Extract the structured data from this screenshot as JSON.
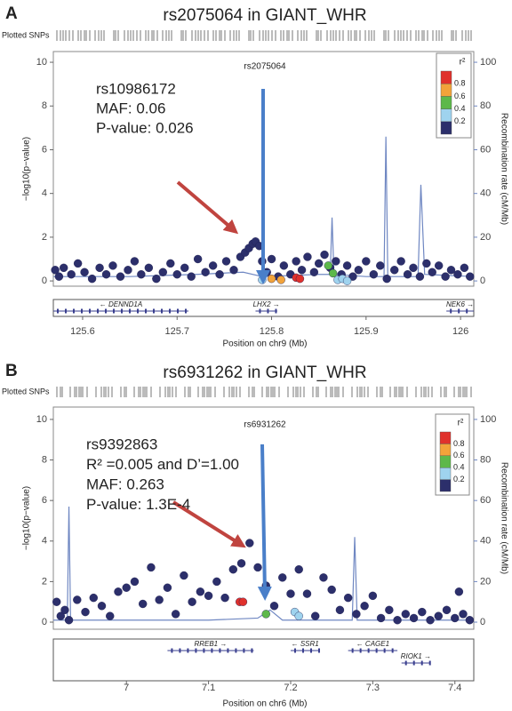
{
  "chart_data": [
    {
      "type": "scatter",
      "panel": "A",
      "title": "rs2075064 in GIANT_WHR",
      "snp_track_label": "Plotted SNPs",
      "index_snp": "rs2075064",
      "annotation": [
        "rs10986172",
        "MAF: 0.06",
        "P-value: 0.026"
      ],
      "x_label": "Position on chr9 (Mb)",
      "y_label": "−log10(p−value)",
      "y2_label": "Recombination rate (cM/Mb)",
      "xlim": [
        125.569,
        126.014
      ],
      "xticks": [
        125.6,
        125.7,
        125.8,
        125.9,
        126
      ],
      "ylim": [
        -0.24,
        10.49
      ],
      "yticks": [
        0,
        2,
        4,
        6,
        8,
        10
      ],
      "y2lim": [
        -2.4,
        104.9
      ],
      "y2ticks": [
        0,
        20,
        40,
        60,
        80,
        100
      ],
      "legend": {
        "title": "r²",
        "colors": [
          "#2c2f6b",
          "#9fd3ee",
          "#5db84a",
          "#f2a33a",
          "#e0312c"
        ],
        "ticks": [
          0.2,
          0.4,
          0.6,
          0.8
        ]
      },
      "series": [
        {
          "color": "#2c2f6b",
          "x": [
            125.571,
            125.575,
            125.58,
            125.588,
            125.595,
            125.602,
            125.61,
            125.618,
            125.625,
            125.632,
            125.64,
            125.648,
            125.655,
            125.662,
            125.67,
            125.678,
            125.685,
            125.693,
            125.7,
            125.708,
            125.715,
            125.722,
            125.73,
            125.738,
            125.745,
            125.752,
            125.76,
            125.767,
            125.772,
            125.776,
            125.78,
            125.783,
            125.787,
            125.79,
            125.795,
            125.8,
            125.807,
            125.813,
            125.82,
            125.826,
            125.832,
            125.838,
            125.845,
            125.85,
            125.856,
            125.862,
            125.868,
            125.874,
            125.88,
            125.886,
            125.892,
            125.9,
            125.908,
            125.915,
            125.922,
            125.93,
            125.937,
            125.944,
            125.95,
            125.957,
            125.964,
            125.97,
            125.977,
            125.984,
            125.99,
            125.997,
            126.004,
            126.01
          ],
          "values": [
            0.5,
            0.2,
            0.6,
            0.3,
            0.8,
            0.4,
            0.1,
            0.6,
            0.3,
            0.7,
            0.2,
            0.5,
            0.9,
            0.3,
            0.6,
            0.1,
            0.4,
            0.8,
            0.3,
            0.6,
            0.2,
            1.0,
            0.4,
            0.7,
            0.3,
            0.9,
            0.5,
            1.1,
            1.3,
            1.5,
            1.7,
            1.8,
            1.6,
            0.9,
            0.4,
            1.0,
            0.2,
            0.7,
            0.3,
            0.9,
            0.5,
            1.1,
            0.4,
            0.8,
            1.2,
            0.6,
            0.9,
            0.3,
            0.7,
            0.2,
            0.5,
            0.9,
            0.3,
            0.7,
            0.1,
            0.5,
            0.9,
            0.3,
            0.6,
            0.2,
            0.8,
            0.4,
            0.7,
            0.2,
            0.5,
            0.3,
            0.6,
            0.2
          ]
        },
        {
          "color": "#9fd3ee",
          "x": [
            125.79,
            125.87,
            125.875,
            125.88
          ],
          "values": [
            0.05,
            0.05,
            0.1,
            0.0
          ]
        },
        {
          "color": "#5db84a",
          "x": [
            125.86,
            125.865
          ],
          "values": [
            0.7,
            0.35
          ]
        },
        {
          "color": "#f2a33a",
          "x": [
            125.8,
            125.81
          ],
          "values": [
            0.1,
            0.05
          ]
        },
        {
          "color": "#e0312c",
          "x": [
            125.826,
            125.83
          ],
          "values": [
            0.15,
            0.1
          ]
        }
      ],
      "recombination": {
        "color": "#6f87c2",
        "x": [
          125.569,
          125.65,
          125.72,
          125.77,
          125.79,
          125.85,
          125.862,
          125.864,
          125.866,
          125.9,
          125.919,
          125.921,
          125.923,
          125.955,
          125.958,
          125.962,
          126.014
        ],
        "values": [
          2,
          2,
          3,
          4,
          2,
          3,
          3,
          29,
          3,
          2,
          2,
          66,
          2,
          2,
          44,
          3,
          2
        ]
      },
      "genes": [
        {
          "name": "DENND1A",
          "start": 125.569,
          "end": 125.712,
          "strand": "-",
          "row": 0
        },
        {
          "name": "LHX2",
          "start": 125.783,
          "end": 125.806,
          "strand": "+",
          "row": 0
        },
        {
          "name": "NEK6",
          "start": 125.985,
          "end": 126.014,
          "strand": "+",
          "row": 0
        }
      ]
    },
    {
      "type": "scatter",
      "panel": "B",
      "title": "rs6931262 in GIANT_WHR",
      "snp_track_label": "Plotted SNPs",
      "index_snp": "rs6931262",
      "annotation": [
        "rs9392863",
        "R² =0.005 and D’=1.00",
        "MAF: 0.263",
        "P-value: 1.3E-4"
      ],
      "x_label": "Position on chr6 (Mb)",
      "y_label": "−log10(p−value)",
      "y2_label": "Recombination rate (cM/Mb)",
      "xlim": [
        6.911,
        7.423
      ],
      "xticks": [
        7,
        7.1,
        7.2,
        7.3,
        7.4
      ],
      "ylim": [
        -0.35,
        10.61
      ],
      "yticks": [
        0,
        2,
        4,
        6,
        8,
        10
      ],
      "y2lim": [
        -3.5,
        106.1
      ],
      "y2ticks": [
        0,
        20,
        40,
        60,
        80,
        100
      ],
      "legend": {
        "title": "r²",
        "colors": [
          "#2c2f6b",
          "#9fd3ee",
          "#5db84a",
          "#f2a33a",
          "#e0312c"
        ],
        "ticks": [
          0.2,
          0.4,
          0.6,
          0.8
        ]
      },
      "series": [
        {
          "color": "#2c2f6b",
          "x": [
            6.915,
            6.92,
            6.925,
            6.93,
            6.94,
            6.95,
            6.96,
            6.97,
            6.98,
            6.99,
            7.0,
            7.01,
            7.02,
            7.03,
            7.04,
            7.05,
            7.06,
            7.07,
            7.08,
            7.09,
            7.1,
            7.11,
            7.12,
            7.13,
            7.14,
            7.15,
            7.16,
            7.17,
            7.18,
            7.19,
            7.2,
            7.21,
            7.22,
            7.23,
            7.24,
            7.25,
            7.26,
            7.27,
            7.28,
            7.29,
            7.3,
            7.31,
            7.32,
            7.33,
            7.34,
            7.35,
            7.36,
            7.37,
            7.38,
            7.39,
            7.4,
            7.405,
            7.41,
            7.418
          ],
          "values": [
            1.0,
            0.3,
            0.6,
            0.1,
            1.1,
            0.5,
            1.2,
            0.8,
            0.3,
            1.5,
            1.7,
            2.0,
            0.9,
            2.7,
            1.1,
            1.7,
            0.4,
            2.3,
            1.0,
            1.5,
            1.3,
            2.0,
            1.2,
            2.6,
            2.9,
            3.9,
            2.7,
            1.8,
            0.8,
            2.2,
            1.4,
            2.6,
            1.4,
            0.3,
            2.2,
            1.6,
            0.6,
            1.2,
            0.4,
            0.8,
            1.3,
            0.2,
            0.6,
            0.1,
            0.4,
            0.2,
            0.5,
            0.1,
            0.3,
            0.6,
            0.2,
            1.5,
            0.4,
            0.1
          ]
        },
        {
          "color": "#9fd3ee",
          "x": [
            7.205,
            7.21
          ],
          "values": [
            0.5,
            0.3
          ]
        },
        {
          "color": "#5db84a",
          "x": [
            7.17
          ],
          "values": [
            0.4
          ]
        },
        {
          "color": "#e0312c",
          "x": [
            7.138,
            7.142
          ],
          "values": [
            1.0,
            1.0
          ]
        }
      ],
      "recombination": {
        "color": "#6f87c2",
        "x": [
          6.911,
          6.928,
          6.93,
          6.932,
          7.1,
          7.16,
          7.175,
          7.19,
          7.275,
          7.278,
          7.281,
          7.423
        ],
        "values": [
          1,
          1,
          57,
          1,
          1,
          2,
          6,
          1,
          1,
          42,
          1,
          1
        ]
      },
      "genes": [
        {
          "name": "RREB1",
          "start": 7.05,
          "end": 7.155,
          "strand": "+",
          "row": 0
        },
        {
          "name": "SSR1",
          "start": 7.2,
          "end": 7.235,
          "strand": "-",
          "row": 0
        },
        {
          "name": "CAGE1",
          "start": 7.27,
          "end": 7.33,
          "strand": "-",
          "row": 0
        },
        {
          "name": "RIOK1",
          "start": 7.335,
          "end": 7.37,
          "strand": "+",
          "row": 1
        }
      ]
    }
  ]
}
